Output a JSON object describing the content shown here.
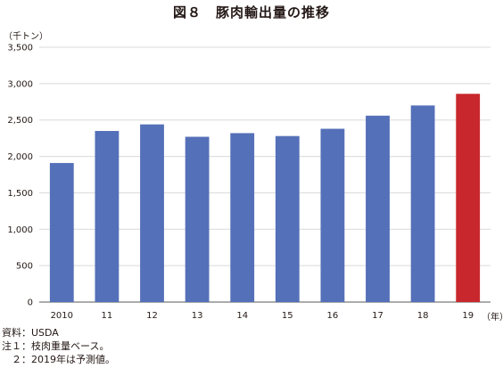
{
  "title": "図８　豚肉輸出量の推移",
  "unit_label": "（千トン）",
  "year_unit_label": "（年）",
  "notes": [
    "資料：USDA",
    "注１：枝肉重量ベース。",
    "　２：2019年は予測値。"
  ],
  "colors": {
    "bar": "#5470b8",
    "highlight": "#c8282d",
    "grid": "#d9d9d9",
    "axis": "#595959"
  },
  "chart_data": {
    "type": "bar",
    "title": "図８　豚肉輸出量の推移",
    "ylabel": "（千トン）",
    "xlabel": "（年）",
    "categories": [
      "2010",
      "11",
      "12",
      "13",
      "14",
      "15",
      "16",
      "17",
      "18",
      "19"
    ],
    "values": [
      1910,
      2350,
      2440,
      2270,
      2320,
      2280,
      2380,
      2560,
      2700,
      2860
    ],
    "highlight_index": 9,
    "ylim": [
      0,
      3500
    ],
    "yticks": [
      "0",
      "500",
      "1,000",
      "1,500",
      "2,000",
      "2,500",
      "3,000",
      "3,500"
    ],
    "grid": true
  }
}
